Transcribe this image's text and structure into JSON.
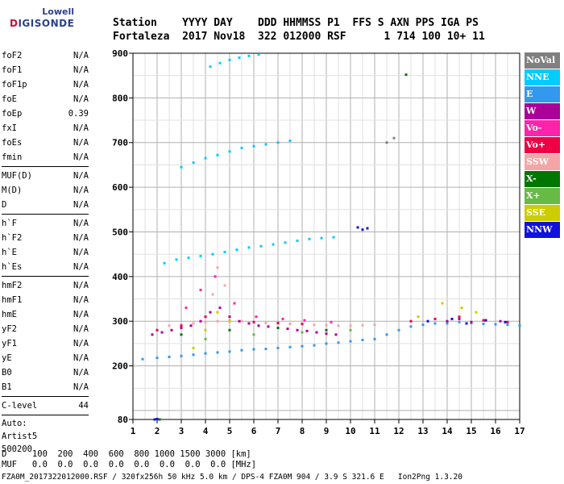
{
  "logo": {
    "top": "Lowell",
    "main_prefix": "D",
    "main_rest": "IGISONDE"
  },
  "header": {
    "line1": "Station    YYYY DAY    DDD HHMMSS P1  FFS S AXN PPS IGA PS",
    "line2": "Fortaleza  2017 Nov18  322 012000 RSF      1 714 100 10+ 11"
  },
  "params": {
    "group1": [
      {
        "label": "foF2",
        "value": "N/A"
      },
      {
        "label": "foF1",
        "value": "N/A"
      },
      {
        "label": "foF1p",
        "value": "N/A"
      },
      {
        "label": "foE",
        "value": "N/A"
      },
      {
        "label": "foEp",
        "value": "0.39"
      },
      {
        "label": "fxI",
        "value": "N/A"
      },
      {
        "label": "foEs",
        "value": "N/A"
      },
      {
        "label": "fmin",
        "value": "N/A"
      }
    ],
    "group2": [
      {
        "label": "MUF(D)",
        "value": "N/A"
      },
      {
        "label": "M(D)",
        "value": "N/A"
      },
      {
        "label": "D",
        "value": "N/A"
      }
    ],
    "group3": [
      {
        "label": "h`F",
        "value": "N/A"
      },
      {
        "label": "h`F2",
        "value": "N/A"
      },
      {
        "label": "h`E",
        "value": "N/A"
      },
      {
        "label": "h`Es",
        "value": "N/A"
      }
    ],
    "group4": [
      {
        "label": "hmF2",
        "value": "N/A"
      },
      {
        "label": "hmF1",
        "value": "N/A"
      },
      {
        "label": "hmE",
        "value": "N/A"
      },
      {
        "label": "yF2",
        "value": "N/A"
      },
      {
        "label": "yF1",
        "value": "N/A"
      },
      {
        "label": "yE",
        "value": "N/A"
      },
      {
        "label": "B0",
        "value": "N/A"
      },
      {
        "label": "B1",
        "value": "N/A"
      }
    ],
    "clevel": {
      "label": "C-level",
      "value": "44"
    },
    "auto": [
      "Auto:",
      "Artist5",
      "500200"
    ]
  },
  "legend": [
    {
      "label": "NoVal",
      "color": "#808080"
    },
    {
      "label": "NNE",
      "color": "#00ccff"
    },
    {
      "label": "E",
      "color": "#3399ee"
    },
    {
      "label": "W",
      "color": "#aa0099"
    },
    {
      "label": "Vo-",
      "color": "#ff22aa"
    },
    {
      "label": "Vo+",
      "color": "#ee0044"
    },
    {
      "label": "SSW",
      "color": "#f4a6a6"
    },
    {
      "label": "X-",
      "color": "#007700"
    },
    {
      "label": "X+",
      "color": "#66bb44"
    },
    {
      "label": "SSE",
      "color": "#cccc00"
    },
    {
      "label": "NNW",
      "color": "#1111dd"
    }
  ],
  "bottom": {
    "d_line": "D     100  200  400  600  800 1000 1500 3000 [km]",
    "muf_line": "MUF   0.0  0.0  0.0  0.0  0.0  0.0  0.0  0.0 [MHz]"
  },
  "footer": "FZA0M_2017322012000.RSF / 320fx256h 50 kHz 5.0 km / DPS-4 FZA0M 904 / 3.9 S 321.6 E   Ion2Png 1.3.20",
  "chart_data": {
    "type": "scatter",
    "xlabel": "",
    "ylabel": "",
    "xlim": [
      1,
      17
    ],
    "ylim": [
      80,
      900
    ],
    "xticks": [
      1,
      2,
      3,
      4,
      5,
      6,
      7,
      8,
      9,
      10,
      11,
      12,
      13,
      14,
      15,
      16,
      17
    ],
    "yticks": [
      80,
      200,
      300,
      400,
      500,
      600,
      700,
      800,
      900
    ],
    "grid": true,
    "legend_placement": "right",
    "series": [
      {
        "color": "#3399ee",
        "points": [
          [
            1.4,
            215
          ],
          [
            2,
            218
          ],
          [
            2.5,
            220
          ],
          [
            3,
            222
          ],
          [
            3.5,
            225
          ],
          [
            4,
            228
          ],
          [
            4.5,
            230
          ],
          [
            5,
            232
          ],
          [
            5.5,
            235
          ],
          [
            6,
            237
          ],
          [
            6.5,
            238
          ],
          [
            7,
            240
          ],
          [
            7.5,
            242
          ],
          [
            8,
            244
          ],
          [
            8.5,
            246
          ],
          [
            9,
            250
          ],
          [
            9.5,
            252
          ],
          [
            10,
            255
          ],
          [
            10.5,
            258
          ],
          [
            11,
            260
          ],
          [
            11.5,
            270
          ],
          [
            12,
            280
          ],
          [
            12.5,
            288
          ],
          [
            13,
            292
          ],
          [
            13.5,
            295
          ],
          [
            14,
            295
          ],
          [
            14.5,
            298
          ],
          [
            15,
            296
          ],
          [
            15.5,
            294
          ],
          [
            16,
            293
          ],
          [
            16.5,
            292
          ],
          [
            17,
            290
          ]
        ]
      },
      {
        "color": "#00ccff",
        "points": [
          [
            2.3,
            430
          ],
          [
            2.8,
            438
          ],
          [
            3.3,
            442
          ],
          [
            3.8,
            446
          ],
          [
            4.3,
            450
          ],
          [
            4.8,
            455
          ],
          [
            5.3,
            460
          ],
          [
            5.8,
            465
          ],
          [
            6.3,
            468
          ],
          [
            6.8,
            472
          ],
          [
            7.3,
            476
          ],
          [
            7.8,
            480
          ],
          [
            8.3,
            484
          ],
          [
            8.8,
            486
          ],
          [
            9.3,
            488
          ],
          [
            3.0,
            645
          ],
          [
            3.5,
            655
          ],
          [
            4.0,
            665
          ],
          [
            4.5,
            672
          ],
          [
            5.0,
            680
          ],
          [
            5.5,
            688
          ],
          [
            6.0,
            692
          ],
          [
            6.5,
            696
          ],
          [
            7.0,
            700
          ],
          [
            7.5,
            704
          ],
          [
            4.2,
            870
          ],
          [
            4.6,
            878
          ],
          [
            5.0,
            885
          ],
          [
            5.4,
            890
          ],
          [
            5.8,
            894
          ],
          [
            6.2,
            897
          ]
        ]
      },
      {
        "color": "#aa0099",
        "points": [
          [
            1.8,
            270
          ],
          [
            2.2,
            275
          ],
          [
            2.6,
            280
          ],
          [
            3.0,
            285
          ],
          [
            3.4,
            290
          ],
          [
            3.8,
            300
          ],
          [
            4.2,
            320
          ],
          [
            4.6,
            330
          ],
          [
            5.0,
            310
          ],
          [
            5.4,
            300
          ],
          [
            5.8,
            295
          ],
          [
            6.2,
            290
          ],
          [
            6.6,
            288
          ],
          [
            7.0,
            285
          ],
          [
            7.4,
            283
          ],
          [
            7.8,
            280
          ],
          [
            8.2,
            278
          ],
          [
            8.6,
            275
          ],
          [
            9.0,
            272
          ],
          [
            9.4,
            270
          ],
          [
            14.0,
            300
          ],
          [
            14.5,
            305
          ],
          [
            15.0,
            298
          ],
          [
            16.2,
            300
          ]
        ]
      },
      {
        "color": "#f4a6a6",
        "points": [
          [
            2.5,
            290
          ],
          [
            3.0,
            292
          ],
          [
            3.5,
            295
          ],
          [
            4.0,
            298
          ],
          [
            4.5,
            300
          ],
          [
            5.0,
            302
          ],
          [
            5.5,
            300
          ],
          [
            6.0,
            298
          ],
          [
            6.5,
            296
          ],
          [
            7.0,
            295
          ],
          [
            7.5,
            294
          ],
          [
            8.0,
            293
          ],
          [
            8.5,
            292
          ],
          [
            9.0,
            291
          ],
          [
            9.5,
            290
          ],
          [
            10.0,
            290
          ],
          [
            10.5,
            291
          ],
          [
            11.0,
            292
          ],
          [
            4.3,
            360
          ],
          [
            4.5,
            420
          ],
          [
            4.8,
            380
          ]
        ]
      },
      {
        "color": "#ee0044",
        "points": [
          [
            2.0,
            280
          ],
          [
            3.0,
            290
          ],
          [
            4.0,
            310
          ],
          [
            5.0,
            300
          ],
          [
            6.0,
            298
          ],
          [
            7.0,
            296
          ],
          [
            8.0,
            294
          ],
          [
            12.5,
            300
          ],
          [
            13.5,
            305
          ],
          [
            14.5,
            310
          ],
          [
            15.5,
            302
          ],
          [
            16.5,
            298
          ]
        ]
      },
      {
        "color": "#ff22aa",
        "points": [
          [
            3.2,
            330
          ],
          [
            3.8,
            370
          ],
          [
            4.4,
            400
          ],
          [
            5.2,
            340
          ],
          [
            6.1,
            310
          ],
          [
            7.2,
            305
          ],
          [
            8.1,
            302
          ],
          [
            9.2,
            298
          ]
        ]
      },
      {
        "color": "#1111dd",
        "points": [
          [
            10.3,
            510
          ],
          [
            10.5,
            505
          ],
          [
            10.7,
            508
          ],
          [
            13.2,
            300
          ],
          [
            14.2,
            305
          ],
          [
            14.8,
            295
          ],
          [
            15.6,
            302
          ],
          [
            16.4,
            298
          ],
          [
            1.9,
            80
          ],
          [
            2.0,
            81
          ]
        ]
      },
      {
        "color": "#cccc00",
        "points": [
          [
            3.5,
            240
          ],
          [
            4.0,
            280
          ],
          [
            4.5,
            320
          ],
          [
            5.0,
            300
          ],
          [
            12.8,
            310
          ],
          [
            13.8,
            340
          ],
          [
            14.6,
            330
          ],
          [
            15.2,
            320
          ]
        ]
      },
      {
        "color": "#007700",
        "points": [
          [
            2.1,
            80
          ],
          [
            3.0,
            270
          ],
          [
            5.0,
            280
          ],
          [
            7.0,
            285
          ],
          [
            9.0,
            280
          ],
          [
            12.3,
            852
          ]
        ]
      },
      {
        "color": "#66bb44",
        "points": [
          [
            4.0,
            260
          ],
          [
            6.0,
            270
          ],
          [
            8.0,
            275
          ],
          [
            10.0,
            280
          ]
        ]
      },
      {
        "color": "#808080",
        "points": [
          [
            11.5,
            700
          ],
          [
            11.8,
            710
          ]
        ]
      }
    ]
  }
}
